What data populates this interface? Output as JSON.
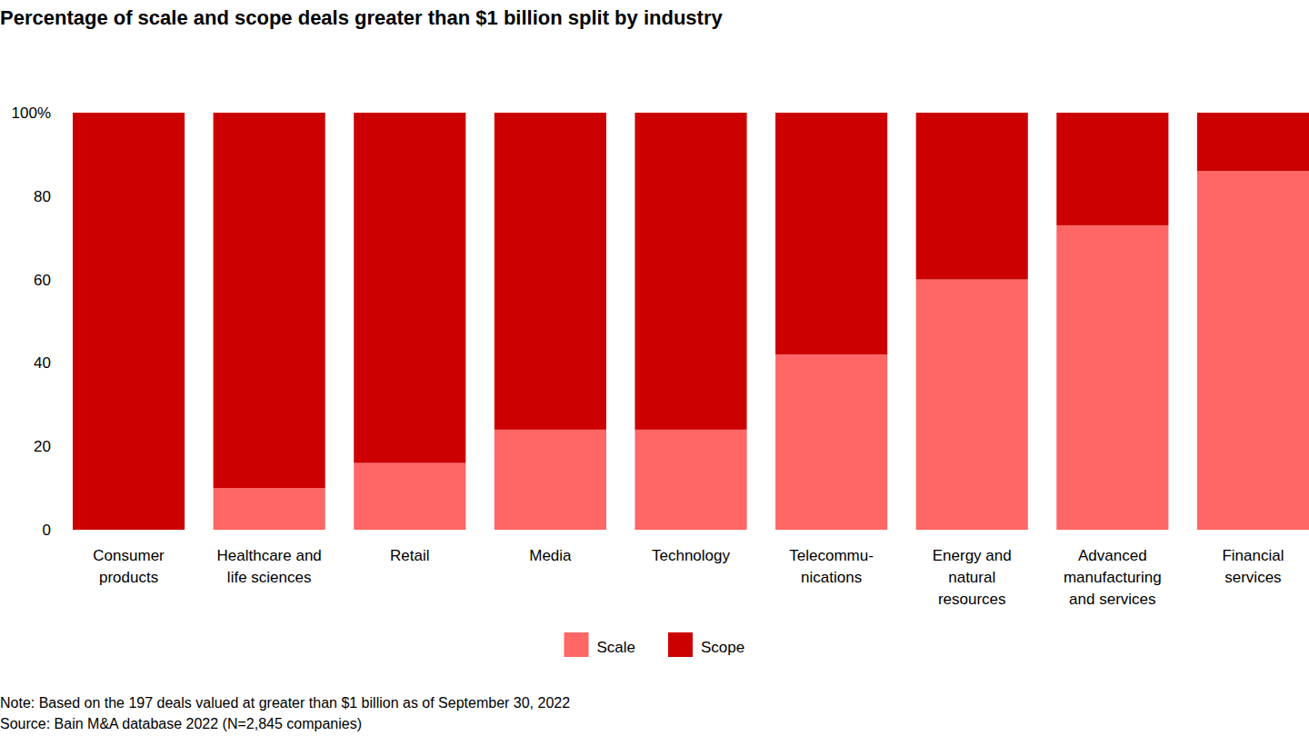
{
  "chart_data": {
    "type": "bar",
    "title": "Percentage of scale and scope deals greater than $1 billion split by industry",
    "categories": [
      "Consumer\nproducts",
      "Healthcare and\nlife sciences",
      "Retail",
      "Media",
      "Technology",
      "Telecommu-\nnications",
      "Energy and\nnatural\nresources",
      "Advanced\nmanufacturing\nand services",
      "Financial\nservices"
    ],
    "series": [
      {
        "name": "Scale",
        "color": "#ff6666",
        "values": [
          0,
          10,
          16,
          24,
          24,
          42,
          60,
          73,
          86
        ]
      },
      {
        "name": "Scope",
        "color": "#cc0000",
        "values": [
          100,
          90,
          84,
          76,
          76,
          58,
          40,
          27,
          14
        ]
      }
    ],
    "stacked": true,
    "ylim": [
      0,
      100
    ],
    "yticks": [
      0,
      20,
      40,
      60,
      80,
      {
        "value": 100,
        "label": "100%"
      }
    ],
    "grid": false,
    "legend": "bottom",
    "note": "Note: Based on the 197 deals valued at greater than $1 billion as of September 30, 2022",
    "source": "Source: Bain M&A database 2022 (N=2,845 companies)"
  }
}
